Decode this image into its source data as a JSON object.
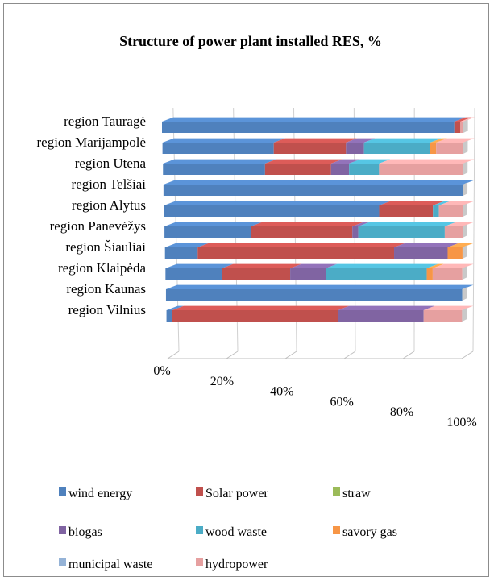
{
  "chart_data": {
    "type": "bar",
    "orientation": "horizontal",
    "stacked": "percent",
    "perspective": "3d",
    "title": "Structure of power plant installed RES, %",
    "xlabel": "",
    "ylabel": "",
    "xlim": [
      0,
      100
    ],
    "x_ticks": [
      "0%",
      "20%",
      "40%",
      "60%",
      "80%",
      "100%"
    ],
    "categories": [
      "region Tauragė",
      "region Marijampolė",
      "region Utena",
      "region Telšiai",
      "region Alytus",
      "region Panevėžys",
      "region Šiauliai",
      "region Klaipėda",
      "region Kaunas",
      "region Vilnius"
    ],
    "series": [
      {
        "name": "wind energy",
        "color": "#4f81bd",
        "values": [
          97,
          37,
          34,
          100,
          72,
          29,
          11,
          19,
          100,
          2
        ]
      },
      {
        "name": "Solar power",
        "color": "#c0504d",
        "values": [
          2,
          24,
          22,
          0,
          18,
          34,
          66,
          23,
          0,
          56
        ]
      },
      {
        "name": "straw",
        "color": "#9bbb59",
        "values": [
          0,
          0,
          0,
          0,
          0,
          0,
          0,
          0,
          0,
          0
        ]
      },
      {
        "name": "biogas",
        "color": "#8064a2",
        "values": [
          0,
          6,
          6,
          0,
          0,
          2,
          18,
          12,
          0,
          29
        ]
      },
      {
        "name": "wood waste",
        "color": "#4bacc6",
        "values": [
          0,
          22,
          10,
          0,
          2,
          29,
          0,
          34,
          0,
          0
        ]
      },
      {
        "name": "savory gas",
        "color": "#f79646",
        "values": [
          0,
          2,
          0,
          0,
          0,
          0,
          5,
          2,
          0,
          0
        ]
      },
      {
        "name": "municipal waste",
        "color": "#95b3d7",
        "values": [
          0,
          0,
          0,
          0,
          0,
          0,
          0,
          0,
          0,
          0
        ]
      },
      {
        "name": "hydropower",
        "color": "#e6a0a0",
        "values": [
          1,
          9,
          28,
          0,
          8,
          6,
          0,
          10,
          0,
          13
        ]
      }
    ],
    "legend_position": "bottom",
    "grid": true
  }
}
